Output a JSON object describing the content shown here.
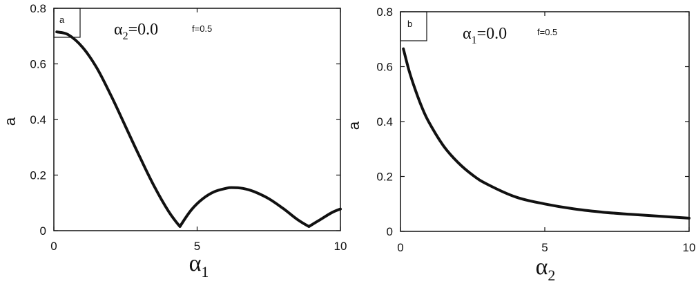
{
  "chart_data": [
    {
      "type": "line",
      "panel_label": "a",
      "annotation": {
        "symbol": "α",
        "subscript": "2",
        "value": "=0.0",
        "extra": "f=0.5"
      },
      "xlabel": {
        "symbol": "α",
        "subscript": "1"
      },
      "ylabel": "a",
      "xlim": [
        0,
        10
      ],
      "ylim": [
        0,
        0.8
      ],
      "xticks": [
        {
          "v": 0,
          "label": "0"
        },
        {
          "v": 5,
          "label": "5"
        },
        {
          "v": 10,
          "label": "10"
        }
      ],
      "yticks": [
        {
          "v": 0,
          "label": "0"
        },
        {
          "v": 0.2,
          "label": "0.2"
        },
        {
          "v": 0.4,
          "label": "0.4"
        },
        {
          "v": 0.6,
          "label": "0.6"
        },
        {
          "v": 0.8,
          "label": "0.8"
        }
      ],
      "series": [
        {
          "x": [
            0.1,
            0.5,
            1.0,
            1.5,
            2.0,
            2.5,
            3.0,
            3.5,
            4.0,
            4.4,
            4.8,
            5.2,
            5.6,
            6.0,
            6.2,
            6.6,
            7.0,
            7.5,
            8.0,
            8.5,
            8.9,
            9.3,
            9.7,
            10.0
          ],
          "y": [
            0.715,
            0.705,
            0.66,
            0.585,
            0.485,
            0.375,
            0.265,
            0.16,
            0.07,
            0.015,
            0.075,
            0.115,
            0.14,
            0.152,
            0.155,
            0.152,
            0.14,
            0.115,
            0.08,
            0.04,
            0.015,
            0.04,
            0.065,
            0.078
          ]
        }
      ]
    },
    {
      "type": "line",
      "panel_label": "b",
      "annotation": {
        "symbol": "α",
        "subscript": "1",
        "value": "=0.0",
        "extra": "f=0.5"
      },
      "xlabel": {
        "symbol": "α",
        "subscript": "2"
      },
      "ylabel": "a",
      "xlim": [
        0,
        10
      ],
      "ylim": [
        0,
        0.8
      ],
      "xticks": [
        {
          "v": 0,
          "label": "0"
        },
        {
          "v": 5,
          "label": "5"
        },
        {
          "v": 10,
          "label": "10"
        }
      ],
      "yticks": [
        {
          "v": 0,
          "label": "0"
        },
        {
          "v": 0.2,
          "label": "0.2"
        },
        {
          "v": 0.4,
          "label": "0.4"
        },
        {
          "v": 0.6,
          "label": "0.6"
        },
        {
          "v": 0.8,
          "label": "0.8"
        }
      ],
      "series": [
        {
          "x": [
            0.1,
            0.3,
            0.5,
            0.75,
            1.0,
            1.5,
            2.0,
            2.5,
            3.0,
            4.0,
            5.0,
            6.0,
            7.0,
            8.0,
            9.0,
            10.0
          ],
          "y": [
            0.665,
            0.585,
            0.52,
            0.45,
            0.395,
            0.31,
            0.25,
            0.205,
            0.172,
            0.125,
            0.1,
            0.082,
            0.07,
            0.062,
            0.055,
            0.048
          ]
        }
      ]
    }
  ]
}
